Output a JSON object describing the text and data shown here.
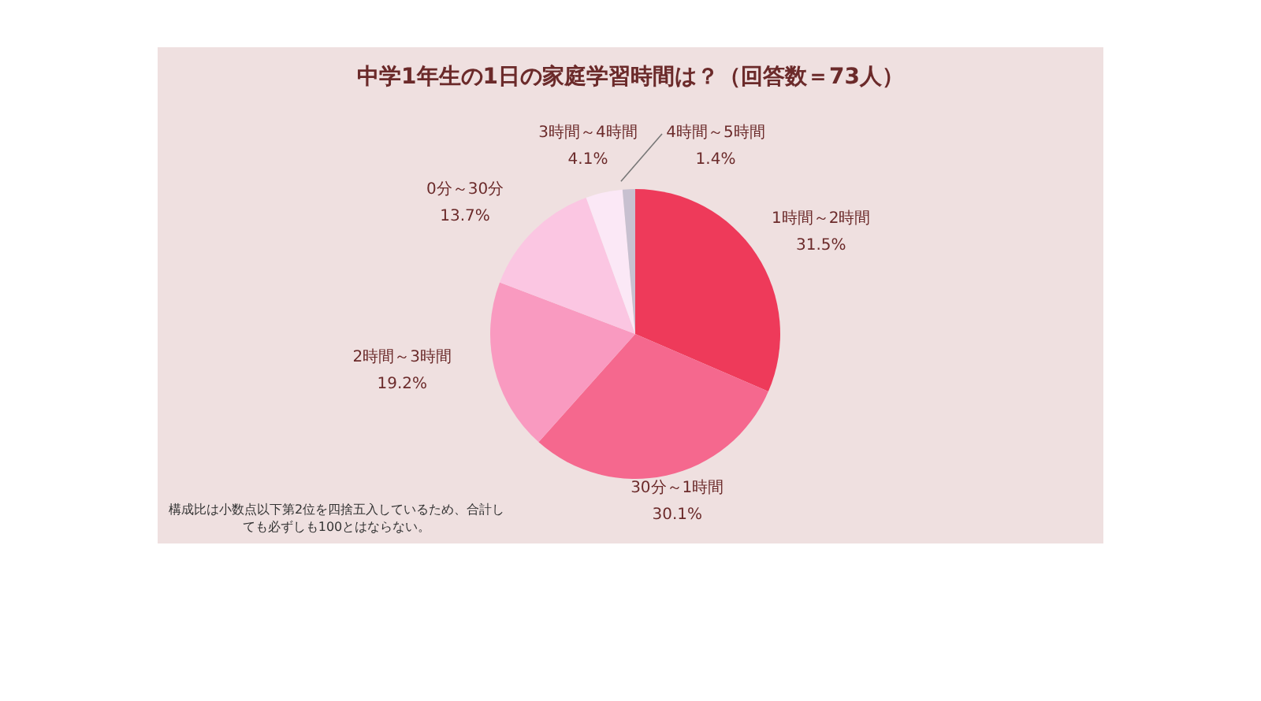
{
  "chart_data": {
    "type": "pie",
    "title": "中学1年生の1日の家庭学習時間は？（回答数＝73人）",
    "categories": [
      "1時間～2時間",
      "30分～1時間",
      "2時間～3時間",
      "0分～30分",
      "3時間～4時間",
      "4時間～5時間"
    ],
    "values": [
      31.5,
      30.1,
      19.2,
      13.7,
      4.1,
      1.4
    ],
    "value_labels": [
      "31.5%",
      "30.1%",
      "19.2%",
      "13.7%",
      "4.1%",
      "1.4%"
    ],
    "colors": [
      "#ee3a5a",
      "#f5688e",
      "#f99ac0",
      "#fbc6e2",
      "#fbe8f6",
      "#c8c0d0"
    ],
    "annotations": [
      "構成比は小数点以下第2位を四捨五入しているため、合計しても必ずしも100とはならない。"
    ],
    "legend": false
  }
}
